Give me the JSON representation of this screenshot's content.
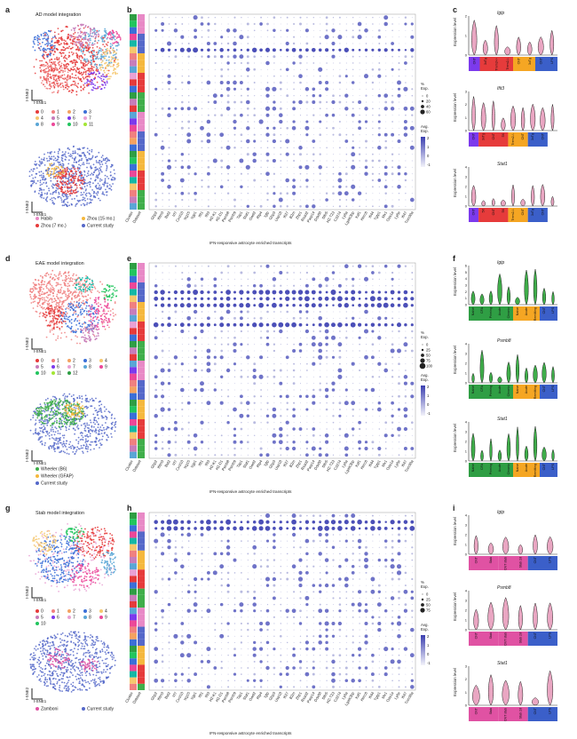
{
  "colors": {
    "cluster": [
      "#e63b3b",
      "#f08080",
      "#f4a261",
      "#3b6fd8",
      "#f5c76e",
      "#c77dba",
      "#7c3aed",
      "#e9a1d4",
      "#5aa6d6",
      "#ec4899",
      "#22c55e",
      "#a3e635",
      "#2f9e44",
      "#14b8a6",
      "#8b5cf6",
      "#ef4444",
      "#f59e0b",
      "#06b6d4",
      "#84cc16",
      "#f97316",
      "#2563eb",
      "#d946ef",
      "#10b981",
      "#f43f5e"
    ],
    "dot": "#4b4fb8",
    "violin_pink": "#e9a6c2",
    "violin_green": "#3fae4a",
    "legend_grad_top": "#3b3fb0",
    "legend_grad_bottom": "#f2f2fa"
  },
  "genes": [
    "Gbp2",
    "Ifitm3",
    "Bst2",
    "Irf7",
    "Cxcl10",
    "Isg15",
    "Iigp1",
    "Ifit1",
    "Ifit3",
    "H2-K1",
    "H2-D1",
    "Psmb8",
    "Psmb9",
    "Tap1",
    "Stat1",
    "Oasl2",
    "Rtp4",
    "Igtp",
    "Gbp3",
    "Usp18",
    "Ifi27",
    "B2m",
    "Zbp1",
    "Rsad2",
    "Parp14",
    "Ddx60",
    "Slfn5",
    "H2-T23",
    "Cd274",
    "Ly6a",
    "Lgals3bp",
    "Xaf1",
    "Herc6",
    "Ifi44",
    "Tgtp1",
    "Mx1",
    "Oas1a",
    "Ly6e",
    "Ifi47",
    "Trim30a"
  ],
  "panels": {
    "a": {
      "label": "a",
      "title": "AD model integration",
      "axes": {
        "y": "t-SNE2",
        "x": "t-SNE1"
      },
      "clusters": [
        "0",
        "1",
        "2",
        "3",
        "4",
        "5",
        "6",
        "7",
        "8",
        "9",
        "10",
        "11"
      ],
      "datasets": [
        {
          "name": "Habib",
          "color": "#e889c6"
        },
        {
          "name": "Zhou (15 mo.)",
          "color": "#f5b83d"
        },
        {
          "name": "Zhou (7 mo.)",
          "color": "#e63b3b"
        },
        {
          "name": "Current study",
          "color": "#5568c9"
        }
      ]
    },
    "b": {
      "label": "b",
      "xtitle": "IFN-responsive astrocyte enriched transcripts",
      "row_labels": [
        "Cluster",
        "Dataset"
      ],
      "legend_pct_title": "%\nExp.",
      "legend_pct": [
        "0",
        "20",
        "40",
        "60"
      ],
      "legend_avg_title": "Avg.\nExp.",
      "legend_avg": [
        "2",
        "1",
        "0",
        "-1"
      ]
    },
    "c": {
      "label": "c",
      "violins": [
        {
          "gene": "Igtp",
          "ylabel": "Expression level",
          "ticks": [
            "2",
            "1",
            "0"
          ],
          "groups": [
            "CNT",
            "3xTg",
            "Trem2+/-",
            "Trem2-/-",
            "CNT",
            "3xTg",
            "CNT",
            "LPS"
          ]
        },
        {
          "gene": "Ifit3",
          "ylabel": "Expression level",
          "ticks": [
            "3",
            "2",
            "1",
            "0"
          ],
          "groups": [
            "CNT",
            "3xTg",
            "CNT",
            "5X",
            "Trem2-/-",
            "CNT",
            "3xTg",
            "CNT",
            "LPS"
          ]
        },
        {
          "gene": "Stat1",
          "ylabel": "Expression level",
          "ticks": [
            "4",
            "3",
            "2",
            "1",
            "0"
          ],
          "groups": [
            "CNT",
            "5X",
            "CNT",
            "5X",
            "Trem2-/-",
            "CNT",
            "3xTg",
            "CNT",
            "LPS"
          ]
        }
      ]
    },
    "d": {
      "label": "d",
      "title": "EAE model integration",
      "axes": {
        "y": "t-SNE2",
        "x": "t-SNE1"
      },
      "clusters": [
        "0",
        "1",
        "2",
        "3",
        "4",
        "5",
        "6",
        "7",
        "8",
        "9",
        "10",
        "11",
        "12"
      ],
      "datasets": [
        {
          "name": "Wheeler (B6)",
          "color": "#3fae4a"
        },
        {
          "name": "Wheeler (GFAP)",
          "color": "#f5b83d"
        },
        {
          "name": "Current study",
          "color": "#5568c9"
        }
      ]
    },
    "e": {
      "label": "e",
      "xtitle": "IFN-responsive astrocyte enriched transcripts",
      "row_labels": [
        "Cluster",
        "Dataset"
      ],
      "legend_pct_title": "%\nExp.",
      "legend_pct": [
        "0",
        "25",
        "50",
        "75",
        "100"
      ],
      "legend_avg_title": "Avg.\nExp.",
      "legend_avg": [
        "2",
        "1",
        "0",
        "-1"
      ]
    },
    "f": {
      "label": "f",
      "violins": [
        {
          "gene": "Igtp",
          "ylabel": "Expression level",
          "ticks": [
            "6",
            "5",
            "4",
            "3",
            "2",
            "1",
            "0"
          ],
          "groups": [
            "Naive",
            "CFA",
            "Priming",
            "Acute",
            "Chronic",
            "Naive",
            "Acute",
            "Remitting",
            "CNT",
            "LPS"
          ]
        },
        {
          "gene": "Psmb8",
          "ylabel": "Expression level",
          "ticks": [
            "4",
            "3",
            "2",
            "1",
            "0"
          ],
          "groups": [
            "Naive",
            "CFA",
            "Priming",
            "Acute",
            "Chronic",
            "Naive",
            "Acute",
            "Remitting",
            "CNT",
            "LPS"
          ]
        },
        {
          "gene": "Stat1",
          "ylabel": "Expression level",
          "ticks": [
            "4",
            "3",
            "2",
            "1",
            "0"
          ],
          "groups": [
            "Naive",
            "CFA",
            "Priming",
            "Acute",
            "Chronic",
            "Naive",
            "Acute",
            "Remitting",
            "CNT",
            "LPS"
          ]
        }
      ]
    },
    "g": {
      "label": "g",
      "title": "Stab model integration",
      "axes": {
        "y": "t-SNE2",
        "x": "t-SNE1"
      },
      "clusters": [
        "0",
        "1",
        "2",
        "3",
        "4",
        "5",
        "6",
        "7",
        "8",
        "9",
        "10"
      ],
      "datasets": [
        {
          "name": "Zamboni",
          "color": "#e052a3"
        },
        {
          "name": "Current study",
          "color": "#5568c9"
        }
      ]
    },
    "h": {
      "label": "h",
      "xtitle": "IFN-responsive astrocyte enriched transcripts",
      "row_labels": [
        "Cluster",
        "Dataset"
      ],
      "legend_pct_title": "%\nExp.",
      "legend_pct": [
        "0",
        "25",
        "50",
        "75"
      ],
      "legend_avg_title": "Avg.\nExp.",
      "legend_avg": [
        "2",
        "1",
        "0",
        "-1"
      ]
    },
    "i": {
      "label": "i",
      "violins": [
        {
          "gene": "Igtp",
          "ylabel": "Expression level",
          "ticks": [
            "4",
            "3",
            "2",
            "1",
            "0"
          ],
          "groups": [
            "CNT",
            "Stab",
            "CNT stab",
            "Stab 2d",
            "CNT",
            "LPS"
          ]
        },
        {
          "gene": "Psmb8",
          "ylabel": "Expression level",
          "ticks": [
            "4",
            "3",
            "2",
            "1",
            "0"
          ],
          "groups": [
            "CNT",
            "Stab",
            "CNT stab",
            "Stab 2d",
            "CNT",
            "LPS"
          ]
        },
        {
          "gene": "Stat1",
          "ylabel": "Expression level",
          "ticks": [
            "3",
            "2",
            "1",
            "0"
          ],
          "groups": [
            "CNT",
            "Stab",
            "CNT stab",
            "Stab 2d",
            "CNT",
            "LPS"
          ]
        }
      ]
    }
  }
}
